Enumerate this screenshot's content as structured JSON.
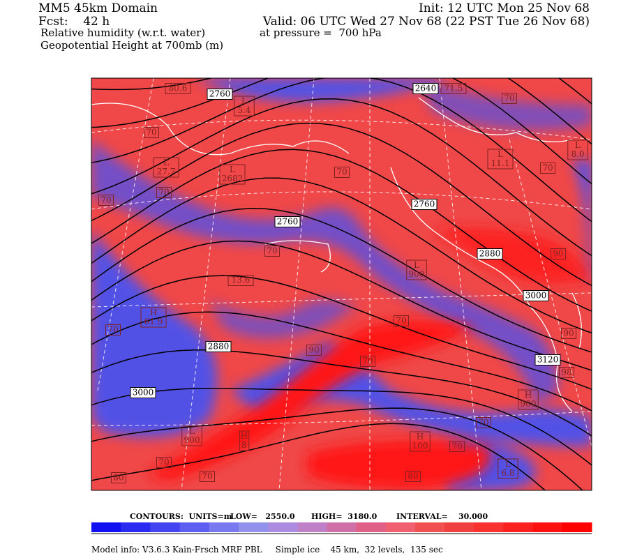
{
  "header": {
    "left": [
      "MM5 45km Domain",
      "Fcst:    42 h",
      "Relative humidity (w.r.t. water)",
      "Geopotential Height at 700mb (m)"
    ],
    "right": [
      "Init: 12 UTC Mon 25 Nov 68",
      "Valid: 06 UTC Wed 27 Nov 68 (22 PST Tue 26 Nov 68)"
    ],
    "pressure": "at pressure =  700 hPa"
  },
  "map": {
    "labels": [
      "2760",
      "L\n5.4",
      "80.6",
      "2640",
      "71.5",
      "70",
      "70",
      "L\n27.7",
      "L\n2682",
      "70",
      "70",
      "70",
      "L\n11.1",
      "L\n8.0",
      "70",
      "2760",
      "2760",
      "70",
      "2880",
      "90",
      "L\n900",
      "13.6",
      "3000",
      "H\n61.9",
      "70",
      "2880",
      "90",
      "70",
      "70",
      "90",
      "3120",
      "98",
      "3000",
      "H\n900",
      "L\n900",
      "H\n8",
      "70",
      "H\n100",
      "70",
      "70",
      "L\n6.8",
      "70",
      "80",
      "80"
    ]
  },
  "contours": {
    "units": "CONTOURS:  UNITS=m",
    "low": "LOW=   2550.0",
    "high": "HIGH=  3180.0",
    "interval": "INTERVAL=    30.000"
  },
  "footer": "Model info: V3.6.3 Kain-Frsch MRF PBL     Simple ice    45 km,  32 levels,  135 sec"
}
